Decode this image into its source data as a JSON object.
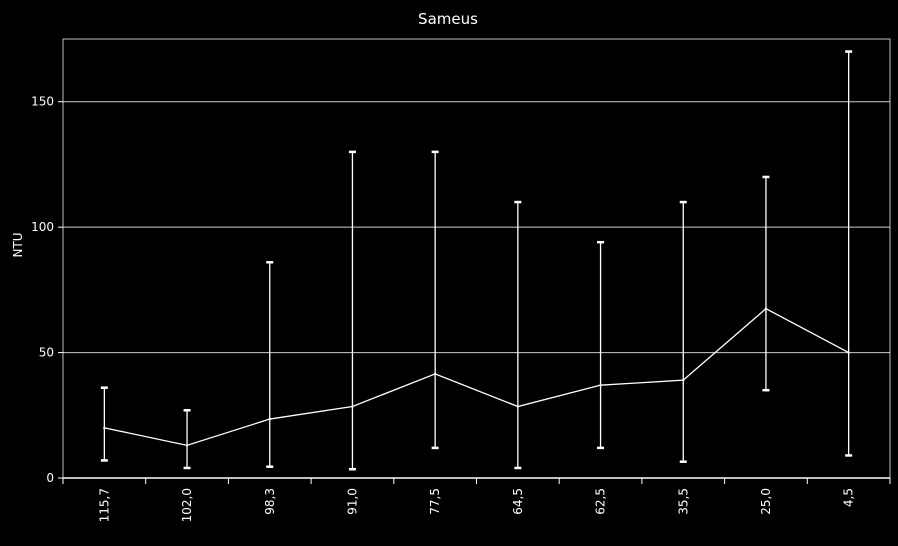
{
  "chart_data": {
    "type": "line",
    "title": "Sameus",
    "ylabel": "NTU",
    "xlabel": "",
    "ylim": [
      0,
      175
    ],
    "yticks": [
      0,
      50,
      100,
      150
    ],
    "grid": true,
    "categories": [
      "115,7",
      "102,0",
      "98,3",
      "91,0",
      "77,5",
      "64,5",
      "62,5",
      "35,5",
      "25,0",
      "4,5"
    ],
    "series": [
      {
        "values": [
          20,
          13,
          23.5,
          28.5,
          41.5,
          28.5,
          37,
          39,
          67.5,
          50
        ],
        "error_low": [
          7,
          4,
          4.5,
          3.5,
          12,
          4,
          12,
          6.5,
          35,
          9
        ],
        "error_high": [
          36,
          27,
          86,
          130,
          130,
          110,
          94,
          110,
          120,
          170
        ]
      }
    ],
    "colors": {
      "background": "#000000",
      "line": "#ffffff",
      "grid": "#ffffff"
    }
  }
}
